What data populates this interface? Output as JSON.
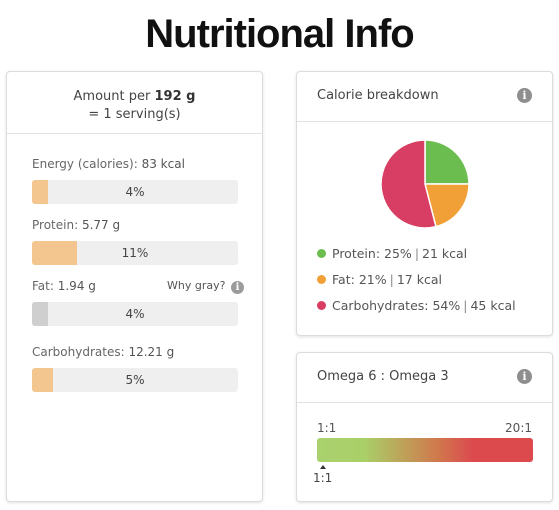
{
  "title": "Nutritional Info",
  "amount": {
    "prefix": "Amount per",
    "weight": "192 g",
    "serving": "= 1 serving(s)"
  },
  "nutrients": [
    {
      "label": "Energy (calories):",
      "value": "83 kcal",
      "percent_text": "4%",
      "percent": 4
    },
    {
      "label": "Protein:",
      "value": "5.77 g",
      "percent_text": "11%",
      "percent": 11
    },
    {
      "label": "Fat:",
      "value": "1.94 g",
      "percent_text": "4%",
      "percent": 4,
      "note": "Why gray?"
    },
    {
      "label": "Carbohydrates:",
      "value": "12.21 g",
      "percent_text": "5%",
      "percent": 5
    }
  ],
  "calorie_breakdown": {
    "title": "Calorie breakdown",
    "items": [
      {
        "name": "Protein:",
        "pct": "25%",
        "kcal": "21 kcal",
        "color": "#6cbd4f",
        "value": 25
      },
      {
        "name": "Fat:",
        "pct": "21%",
        "kcal": "17 kcal",
        "color": "#f1a037",
        "value": 21
      },
      {
        "name": "Carbohydrates:",
        "pct": "54%",
        "kcal": "45 kcal",
        "color": "#d83d63",
        "value": 54
      }
    ]
  },
  "omega": {
    "title": "Omega 6 : Omega 3",
    "scale_min": "1:1",
    "scale_max": "20:1",
    "value_label": "1:1"
  },
  "icons": {
    "info": "info-icon"
  },
  "colors": {
    "bar_fill": "#f3c68f",
    "bar_fill_gray": "#cfcfcf",
    "bar_bg": "#efefef"
  }
}
